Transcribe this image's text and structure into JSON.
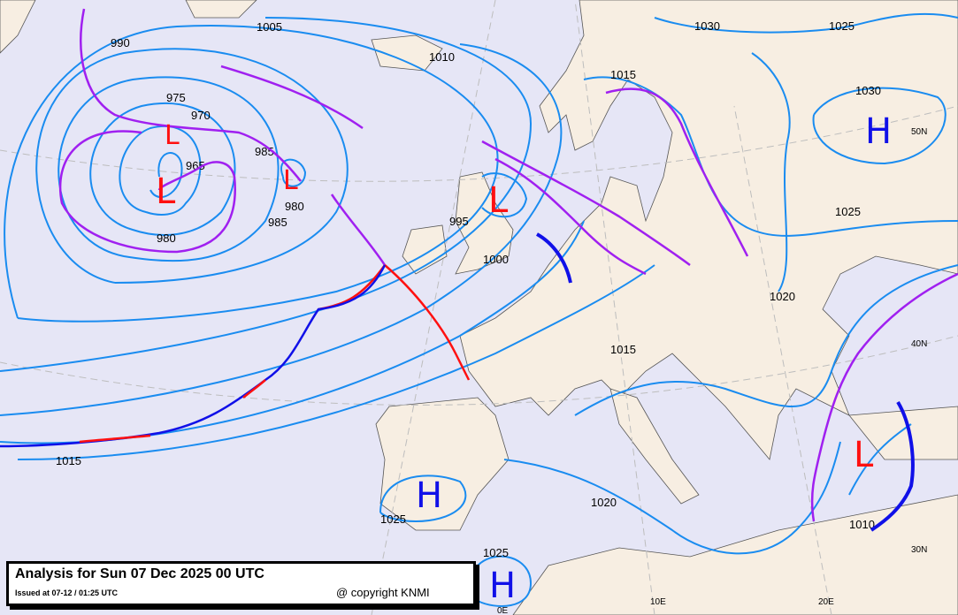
{
  "title": "Analysis for Sun 07 Dec 2025 00 UTC",
  "issued": "Issued at 07-12 / 01:25 UTC",
  "copyright": "@ copyright KNMI",
  "colors": {
    "sea": "#e6e6f6",
    "land": "#f7eee2",
    "isobar": "#1a8cf0",
    "occluded": "#a020f0",
    "cold": "#1010e8",
    "warm": "#ff1010",
    "low": "#ff1010",
    "high": "#1010e8"
  },
  "isobar_labels": [
    "990",
    "975",
    "970",
    "985",
    "980",
    "965",
    "980",
    "985",
    "1005",
    "1010",
    "995",
    "1000",
    "1015",
    "1030",
    "1025",
    "1030",
    "1025",
    "1020",
    "1015",
    "1020",
    "1025",
    "1015",
    "1025",
    "1010"
  ],
  "pressure_centers": {
    "lows": [
      "L",
      "L",
      "L",
      "L",
      "L"
    ],
    "highs": [
      "H",
      "H",
      "H"
    ]
  },
  "coord_labels": [
    "50N",
    "40N",
    "30N",
    "0E",
    "10E",
    "20E"
  ]
}
